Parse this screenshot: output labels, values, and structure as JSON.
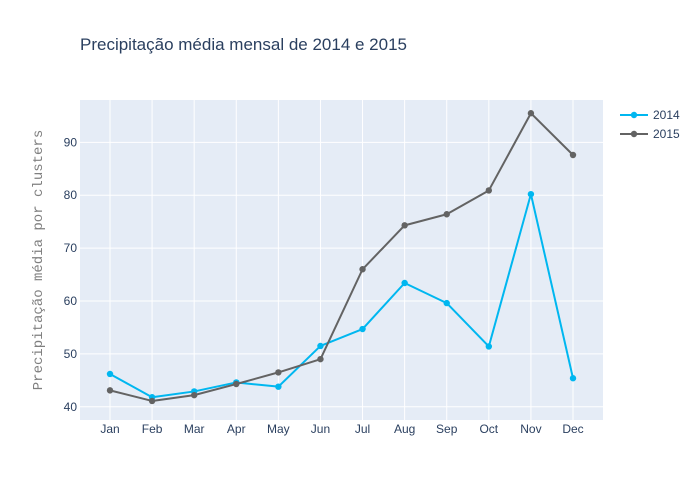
{
  "chart_data": {
    "type": "line",
    "title": "Precipitação média mensal de 2014 e 2015",
    "xlabel": "",
    "ylabel": "Precipitação média por clusters",
    "categories": [
      "Jan",
      "Feb",
      "Mar",
      "Apr",
      "May",
      "Jun",
      "Jul",
      "Aug",
      "Sep",
      "Oct",
      "Nov",
      "Dec"
    ],
    "ylim": [
      37.5,
      98
    ],
    "yticks": [
      40,
      50,
      60,
      70,
      80,
      90
    ],
    "grid": true,
    "legend_position": "top-right",
    "series": [
      {
        "name": "2014",
        "color": "#00b7f0",
        "values": [
          46.2,
          41.8,
          42.9,
          44.6,
          43.8,
          51.5,
          54.7,
          63.4,
          59.6,
          51.4,
          80.2,
          45.4
        ]
      },
      {
        "name": "2015",
        "color": "#636363",
        "values": [
          43.1,
          41.1,
          42.2,
          44.3,
          46.5,
          49.0,
          66.0,
          74.3,
          76.4,
          80.9,
          95.5,
          87.6
        ]
      }
    ]
  }
}
